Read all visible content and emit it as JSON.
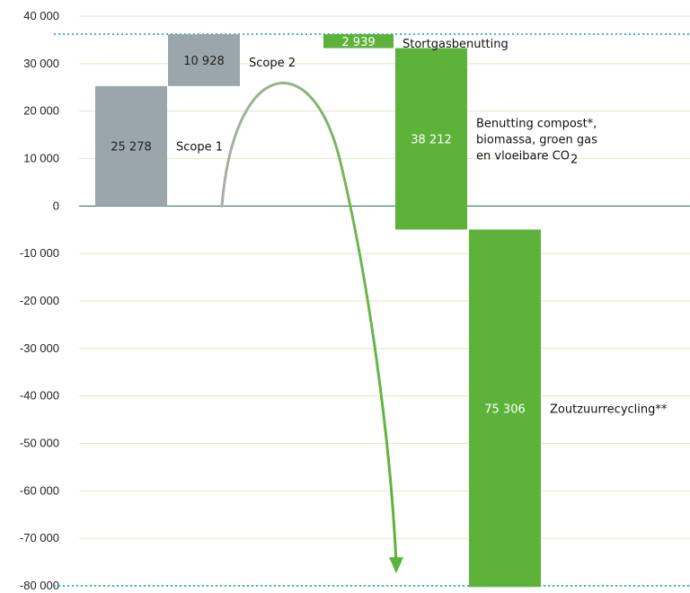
{
  "chart_data": {
    "type": "waterfall",
    "title": "",
    "xlabel": "",
    "ylabel": "",
    "ylim": [
      -80000,
      40000
    ],
    "yticks": [
      40000,
      30000,
      20000,
      10000,
      0,
      -10000,
      -20000,
      -30000,
      -40000,
      -50000,
      -60000,
      -70000,
      -80000
    ],
    "ytick_labels": [
      "40 000",
      "30 000",
      "20 000",
      "10 000",
      "0",
      "-10 000",
      "-20 000",
      "-30 000",
      "-40 000",
      "-50 000",
      "-60 000",
      "-70 000",
      "-80 000"
    ],
    "grid": true,
    "reference_lines": [
      36206,
      -80000
    ],
    "bars": [
      {
        "category": "Scope 1",
        "value": 25278,
        "label": "25 278",
        "start": 0,
        "end": 25278,
        "color": "#9aa6ab"
      },
      {
        "category": "Scope 2",
        "value": 10928,
        "label": "10 928",
        "start": 25278,
        "end": 36206,
        "color": "#9aa6ab"
      },
      {
        "category": "Stortgasbenutting",
        "value": -2939,
        "label": "2 939",
        "start": 36206,
        "end": 33267,
        "color": "#5db33a"
      },
      {
        "category_lines": [
          "Benutting compost*,",
          "biomassa, groen gas",
          "en vloeibare CO"
        ],
        "category_subscript": "2",
        "value": -38212,
        "label": "38 212",
        "start": 33267,
        "end": -4945,
        "color": "#5db33a"
      },
      {
        "category": "Zoutzuurrecycling**",
        "value": -75306,
        "label": "75 306",
        "start": -4945,
        "end": -80251,
        "color": "#5db33a"
      }
    ],
    "colors": {
      "gray": "#9aa6ab",
      "green": "#5db33a",
      "grid": "#e3e6c8",
      "zero": "#2e7a6e",
      "reference": "#41b6d3"
    }
  }
}
